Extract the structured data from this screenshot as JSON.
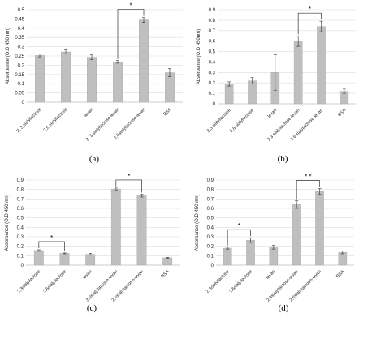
{
  "figure": {
    "panels": [
      "(a)",
      "(b)",
      "(c)",
      "(d)"
    ]
  },
  "chart_data": [
    {
      "type": "bar",
      "panel_label": "(a)",
      "ylabel": "Absorbance (O.D 450 nm)",
      "ylim": [
        0,
        0.5
      ],
      "yticks": [
        "0",
        "0.05",
        "0.1",
        "0.15",
        "0.2",
        "0.25",
        "0.3",
        "0.35",
        "0.4",
        "0.45",
        "0.5"
      ],
      "grid": true,
      "categories": [
        "2, 3 sialyllactose",
        "2,6 sialyllactose",
        "levan",
        "2, 3 sialyllactose-levan",
        "2,6sialyllactose-levan",
        "BSA"
      ],
      "values": [
        0.253,
        0.272,
        0.243,
        0.218,
        0.445,
        0.16
      ],
      "errors": [
        0.008,
        0.012,
        0.013,
        0.007,
        0.013,
        0.022
      ],
      "significance": [
        {
          "from": 3,
          "to": 4,
          "label": "*"
        }
      ]
    },
    {
      "type": "bar",
      "panel_label": "(b)",
      "ylabel": "Absorbance (O.D 450nm)",
      "ylim": [
        0,
        0.9
      ],
      "yticks": [
        "0",
        "0.1",
        "0.2",
        "0.3",
        "0.4",
        "0.5",
        "0.6",
        "0.7",
        "0.8",
        "0.9"
      ],
      "grid": true,
      "categories": [
        "2,3 sialyllactose",
        "2,6 sialyllactose",
        "levan",
        "2,3 sialyllactose-levan",
        "2,6 sialyllactose-levan",
        "BSA"
      ],
      "values": [
        0.19,
        0.22,
        0.3,
        0.6,
        0.74,
        0.12
      ],
      "errors": [
        0.02,
        0.03,
        0.17,
        0.05,
        0.05,
        0.02
      ],
      "significance": [
        {
          "from": 3,
          "to": 4,
          "label": "*"
        }
      ]
    },
    {
      "type": "bar",
      "panel_label": "(c)",
      "ylabel": "Absorbance (O.D 450 nm)",
      "ylim": [
        0,
        0.9
      ],
      "yticks": [
        "0",
        "0.1",
        "0.2",
        "0.3",
        "0.4",
        "0.5",
        "0.6",
        "0.7",
        "0.8",
        "0.9"
      ],
      "grid": true,
      "categories": [
        "2,3sialyllactose",
        "2,6sialyllactose",
        "levan",
        "2,3sialyllactose-levan",
        "2,6sialyllactose-levan",
        "BSA"
      ],
      "values": [
        0.155,
        0.125,
        0.115,
        0.805,
        0.735,
        0.078
      ],
      "errors": [
        0.008,
        0.005,
        0.01,
        0.01,
        0.015,
        0.005
      ],
      "significance": [
        {
          "from": 0,
          "to": 1,
          "label": "*"
        },
        {
          "from": 3,
          "to": 4,
          "label": "*"
        }
      ]
    },
    {
      "type": "bar",
      "panel_label": "(d)",
      "ylabel": "Absorbance (O.D 450 nm)",
      "ylim": [
        0,
        0.9
      ],
      "yticks": [
        "0",
        "0.1",
        "0.2",
        "0.3",
        "0.4",
        "0.5",
        "0.6",
        "0.7",
        "0.8",
        "0.9"
      ],
      "grid": true,
      "categories": [
        "2,3sialyllactose",
        "2,6sialyllactose",
        "levan",
        "2,3sialyllactose-levan",
        "2,6sialyllactose-levan",
        "BSA"
      ],
      "values": [
        0.18,
        0.265,
        0.19,
        0.64,
        0.78,
        0.135
      ],
      "errors": [
        0.01,
        0.025,
        0.02,
        0.04,
        0.03,
        0.015
      ],
      "significance": [
        {
          "from": 0,
          "to": 1,
          "label": "*"
        },
        {
          "from": 3,
          "to": 4,
          "label": "* *"
        }
      ]
    }
  ]
}
